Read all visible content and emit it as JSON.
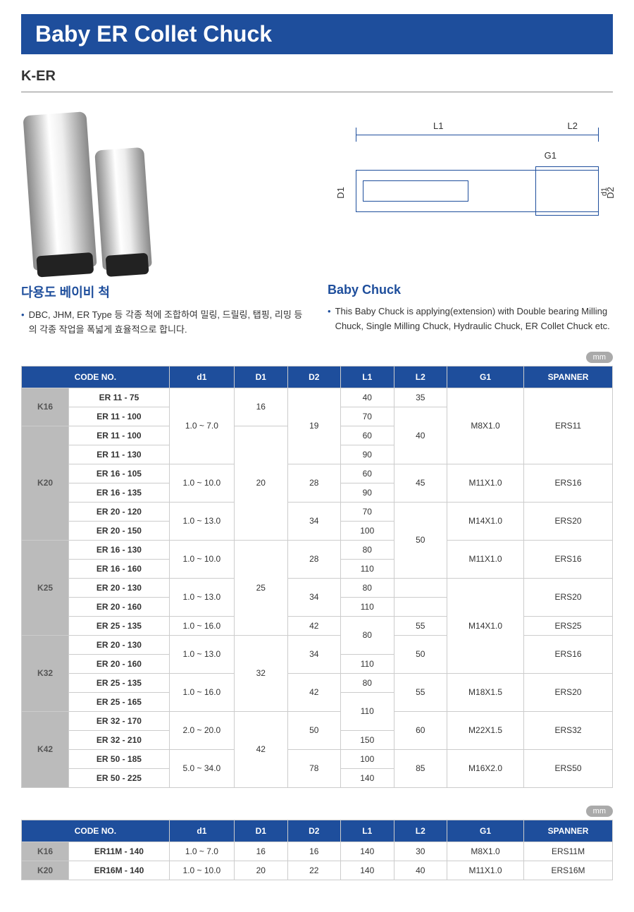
{
  "header": {
    "title": "Baby ER Collet Chuck",
    "subtitle": "K-ER"
  },
  "diagram": {
    "labels": {
      "L1": "L1",
      "L2": "L2",
      "G1": "G1",
      "D1": "D1",
      "d1": "d1",
      "D2": "D2"
    }
  },
  "left_section": {
    "title": "다용도 베이비 척",
    "bullet": "DBC, JHM, ER Type 등 각종 척에 조합하여 밀링, 드릴링, 탭핑, 리밍 등의 각종 작업을 폭넓게 효율적으로 합니다."
  },
  "right_section": {
    "title": "Baby Chuck",
    "bullet": "This Baby Chuck is applying(extension) with Double bearing Milling Chuck, Single Milling Chuck, Hydraulic Chuck, ER Collet Chuck etc."
  },
  "unit": "mm",
  "table1": {
    "columns": [
      "CODE NO.",
      "d1",
      "D1",
      "D2",
      "L1",
      "L2",
      "G1",
      "SPANNER"
    ],
    "col_widths": [
      "8%",
      "17%",
      "11%",
      "9%",
      "9%",
      "9%",
      "9%",
      "13%",
      "15%"
    ],
    "rows": [
      {
        "k": "K16",
        "k_rs": 2,
        "code": "ER 11 - 75",
        "d1": "1.0 ~ 7.0",
        "d1_rs": 4,
        "D1": "16",
        "D1_rs": 2,
        "D2": "19",
        "D2_rs": 4,
        "L1": "40",
        "L2": "35",
        "L2_rs": 1,
        "G1": "M8X1.0",
        "G1_rs": 4,
        "sp": "ERS11",
        "sp_rs": 4
      },
      {
        "code": "ER 11 - 100",
        "L1": "70",
        "L2": "40",
        "L2_rs": 3
      },
      {
        "k": "K20",
        "k_rs": 6,
        "code": "ER 11 - 100",
        "D1": "20",
        "D1_rs": 6,
        "L1": "60"
      },
      {
        "code": "ER 11 - 130",
        "L1": "90"
      },
      {
        "code": "ER 16 - 105",
        "d1": "1.0 ~ 10.0",
        "d1_rs": 2,
        "D2": "28",
        "D2_rs": 2,
        "L1": "60",
        "L2": "45",
        "L2_rs": 2,
        "G1": "M11X1.0",
        "G1_rs": 2,
        "sp": "ERS16",
        "sp_rs": 2
      },
      {
        "code": "ER 16 - 135",
        "L1": "90"
      },
      {
        "code": "ER 20 - 120",
        "d1": "1.0 ~ 13.0",
        "d1_rs": 2,
        "D2": "34",
        "D2_rs": 2,
        "L1": "70",
        "L2": "50",
        "L2_rs": 4,
        "G1": "M14X1.0",
        "G1_rs": 2,
        "sp": "ERS20",
        "sp_rs": 2
      },
      {
        "code": "ER 20 - 150",
        "L1": "100"
      },
      {
        "k": "K25",
        "k_rs": 5,
        "code": "ER 16 - 130",
        "d1": "1.0 ~ 10.0",
        "d1_rs": 2,
        "D1": "25",
        "D1_rs": 5,
        "D2": "28",
        "D2_rs": 2,
        "L1": "80",
        "G1": "M11X1.0",
        "G1_rs": 2,
        "sp": "ERS16",
        "sp_rs": 2
      },
      {
        "code": "ER 16 - 160",
        "L1": "110"
      },
      {
        "code": "ER 20 - 130",
        "d1": "1.0 ~ 13.0",
        "d1_rs": 2,
        "D2": "34",
        "D2_rs": 2,
        "L1": "80",
        "L2": "",
        "G1": "M14X1.0",
        "G1_rs": 5,
        "sp": "ERS20",
        "sp_rs": 2
      },
      {
        "code": "ER 20 - 160",
        "L1": "110"
      },
      {
        "code": "ER 25 - 135",
        "d1": "1.0 ~ 16.0",
        "d1_rs": 1,
        "D2": "42",
        "D2_rs": 1,
        "L1": "80",
        "L1_rs": 2,
        "L2": "55",
        "L2_rs": 1,
        "sp": "ERS25",
        "sp_rs": 1
      },
      {
        "k": "K32",
        "k_rs": 4,
        "code": "ER 20 - 130",
        "d1": "1.0 ~ 13.0",
        "d1_rs": 2,
        "D1": "32",
        "D1_rs": 4,
        "D2": "34",
        "D2_rs": 2,
        "L2": "50",
        "L2_rs": 2,
        "sp": "ERS16",
        "sp_rs": 2
      },
      {
        "code": "ER 20 - 160",
        "L1": "110"
      },
      {
        "code": "ER 25 - 135",
        "d1": "1.0 ~ 16.0",
        "d1_rs": 2,
        "D2": "42",
        "D2_rs": 2,
        "L1": "80",
        "L2": "55",
        "L2_rs": 2,
        "G1": "M18X1.5",
        "G1_rs": 2,
        "sp": "ERS20",
        "sp_rs": 2
      },
      {
        "code": "ER 25 - 165",
        "L1": "110",
        "L1_rs": 2
      },
      {
        "k": "K42",
        "k_rs": 4,
        "code": "ER 32 - 170",
        "d1": "2.0 ~ 20.0",
        "d1_rs": 2,
        "D1": "42",
        "D1_rs": 4,
        "D2": "50",
        "D2_rs": 2,
        "L2": "60",
        "L2_rs": 2,
        "G1": "M22X1.5",
        "G1_rs": 2,
        "sp": "ERS32",
        "sp_rs": 2
      },
      {
        "code": "ER 32 - 210",
        "L1": "150"
      },
      {
        "code": "ER 50 - 185",
        "d1": "5.0 ~ 34.0",
        "d1_rs": 2,
        "D2": "78",
        "D2_rs": 2,
        "L1": "100",
        "L2": "85",
        "L2_rs": 2,
        "G1": "M16X2.0",
        "G1_rs": 2,
        "sp": "ERS50",
        "sp_rs": 2
      },
      {
        "code": "ER 50 - 225",
        "L1": "140"
      }
    ]
  },
  "table2": {
    "columns": [
      "CODE NO.",
      "d1",
      "D1",
      "D2",
      "L1",
      "L2",
      "G1",
      "SPANNER"
    ],
    "rows": [
      {
        "k": "K16",
        "code": "ER11M - 140",
        "d1": "1.0 ~ 7.0",
        "D1": "16",
        "D2": "16",
        "L1": "140",
        "L2": "30",
        "G1": "M8X1.0",
        "sp": "ERS11M"
      },
      {
        "k": "K20",
        "code": "ER16M - 140",
        "d1": "1.0 ~ 10.0",
        "D1": "20",
        "D2": "22",
        "L1": "140",
        "L2": "40",
        "G1": "M11X1.0",
        "sp": "ERS16M"
      }
    ]
  }
}
